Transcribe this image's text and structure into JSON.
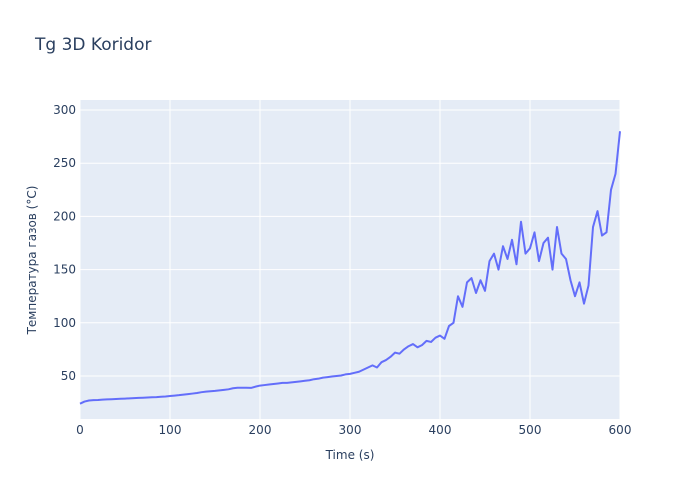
{
  "chart_data": {
    "type": "line",
    "title": "Tg 3D Koridor",
    "x_label": "Time (s)",
    "y_label": "Температура газов (°C)",
    "xlim": [
      0,
      600
    ],
    "xticks": [
      0,
      100,
      200,
      300,
      400,
      500,
      600
    ],
    "ylim": [
      9.6,
      309.4
    ],
    "yticks": [
      50,
      100,
      150,
      200,
      250,
      300
    ],
    "grid": true,
    "series": [
      {
        "color": "#636efa",
        "x": [
          0,
          5,
          10,
          15,
          20,
          25,
          30,
          35,
          40,
          45,
          50,
          55,
          60,
          65,
          70,
          75,
          80,
          85,
          90,
          95,
          100,
          105,
          110,
          115,
          120,
          125,
          130,
          135,
          140,
          145,
          150,
          155,
          160,
          165,
          170,
          175,
          180,
          185,
          190,
          195,
          200,
          205,
          210,
          215,
          220,
          225,
          230,
          235,
          240,
          245,
          250,
          255,
          260,
          265,
          270,
          275,
          280,
          285,
          290,
          295,
          300,
          305,
          310,
          315,
          320,
          325,
          330,
          335,
          340,
          345,
          350,
          355,
          360,
          365,
          370,
          375,
          380,
          385,
          390,
          395,
          400,
          405,
          410,
          415,
          420,
          425,
          430,
          435,
          440,
          445,
          450,
          455,
          460,
          465,
          470,
          475,
          480,
          485,
          490,
          495,
          500,
          505,
          510,
          515,
          520,
          525,
          530,
          535,
          540,
          545,
          550,
          555,
          560,
          565,
          570,
          575,
          580,
          585,
          590,
          595,
          600
        ],
        "values": [
          24,
          26,
          27,
          27.3,
          27.5,
          27.8,
          28,
          28.2,
          28.4,
          28.6,
          28.8,
          29,
          29.2,
          29.4,
          29.6,
          29.8,
          30,
          30.2,
          30.5,
          30.8,
          31.2,
          31.6,
          32,
          32.5,
          33,
          33.5,
          34,
          34.8,
          35.3,
          35.7,
          36,
          36.5,
          37,
          37.5,
          38.5,
          39,
          39,
          39,
          38.8,
          40,
          41,
          41.5,
          42,
          42.5,
          43,
          43.5,
          43.5,
          44,
          44.5,
          45,
          45.5,
          46,
          47,
          47.5,
          48.5,
          49,
          49.5,
          50,
          50.5,
          51.5,
          52,
          53,
          54,
          56,
          58,
          60,
          58,
          63,
          65,
          68,
          72,
          71,
          75,
          78,
          80,
          77,
          79,
          83,
          82,
          86,
          88,
          85,
          97,
          100,
          125,
          115,
          138,
          142,
          128,
          140,
          130,
          158,
          165,
          150,
          172,
          160,
          178,
          155,
          195,
          165,
          170,
          185,
          158,
          175,
          180,
          150,
          190,
          165,
          160,
          140,
          125,
          138,
          118,
          135,
          190,
          205,
          182,
          185,
          225,
          240,
          280
        ]
      }
    ]
  }
}
